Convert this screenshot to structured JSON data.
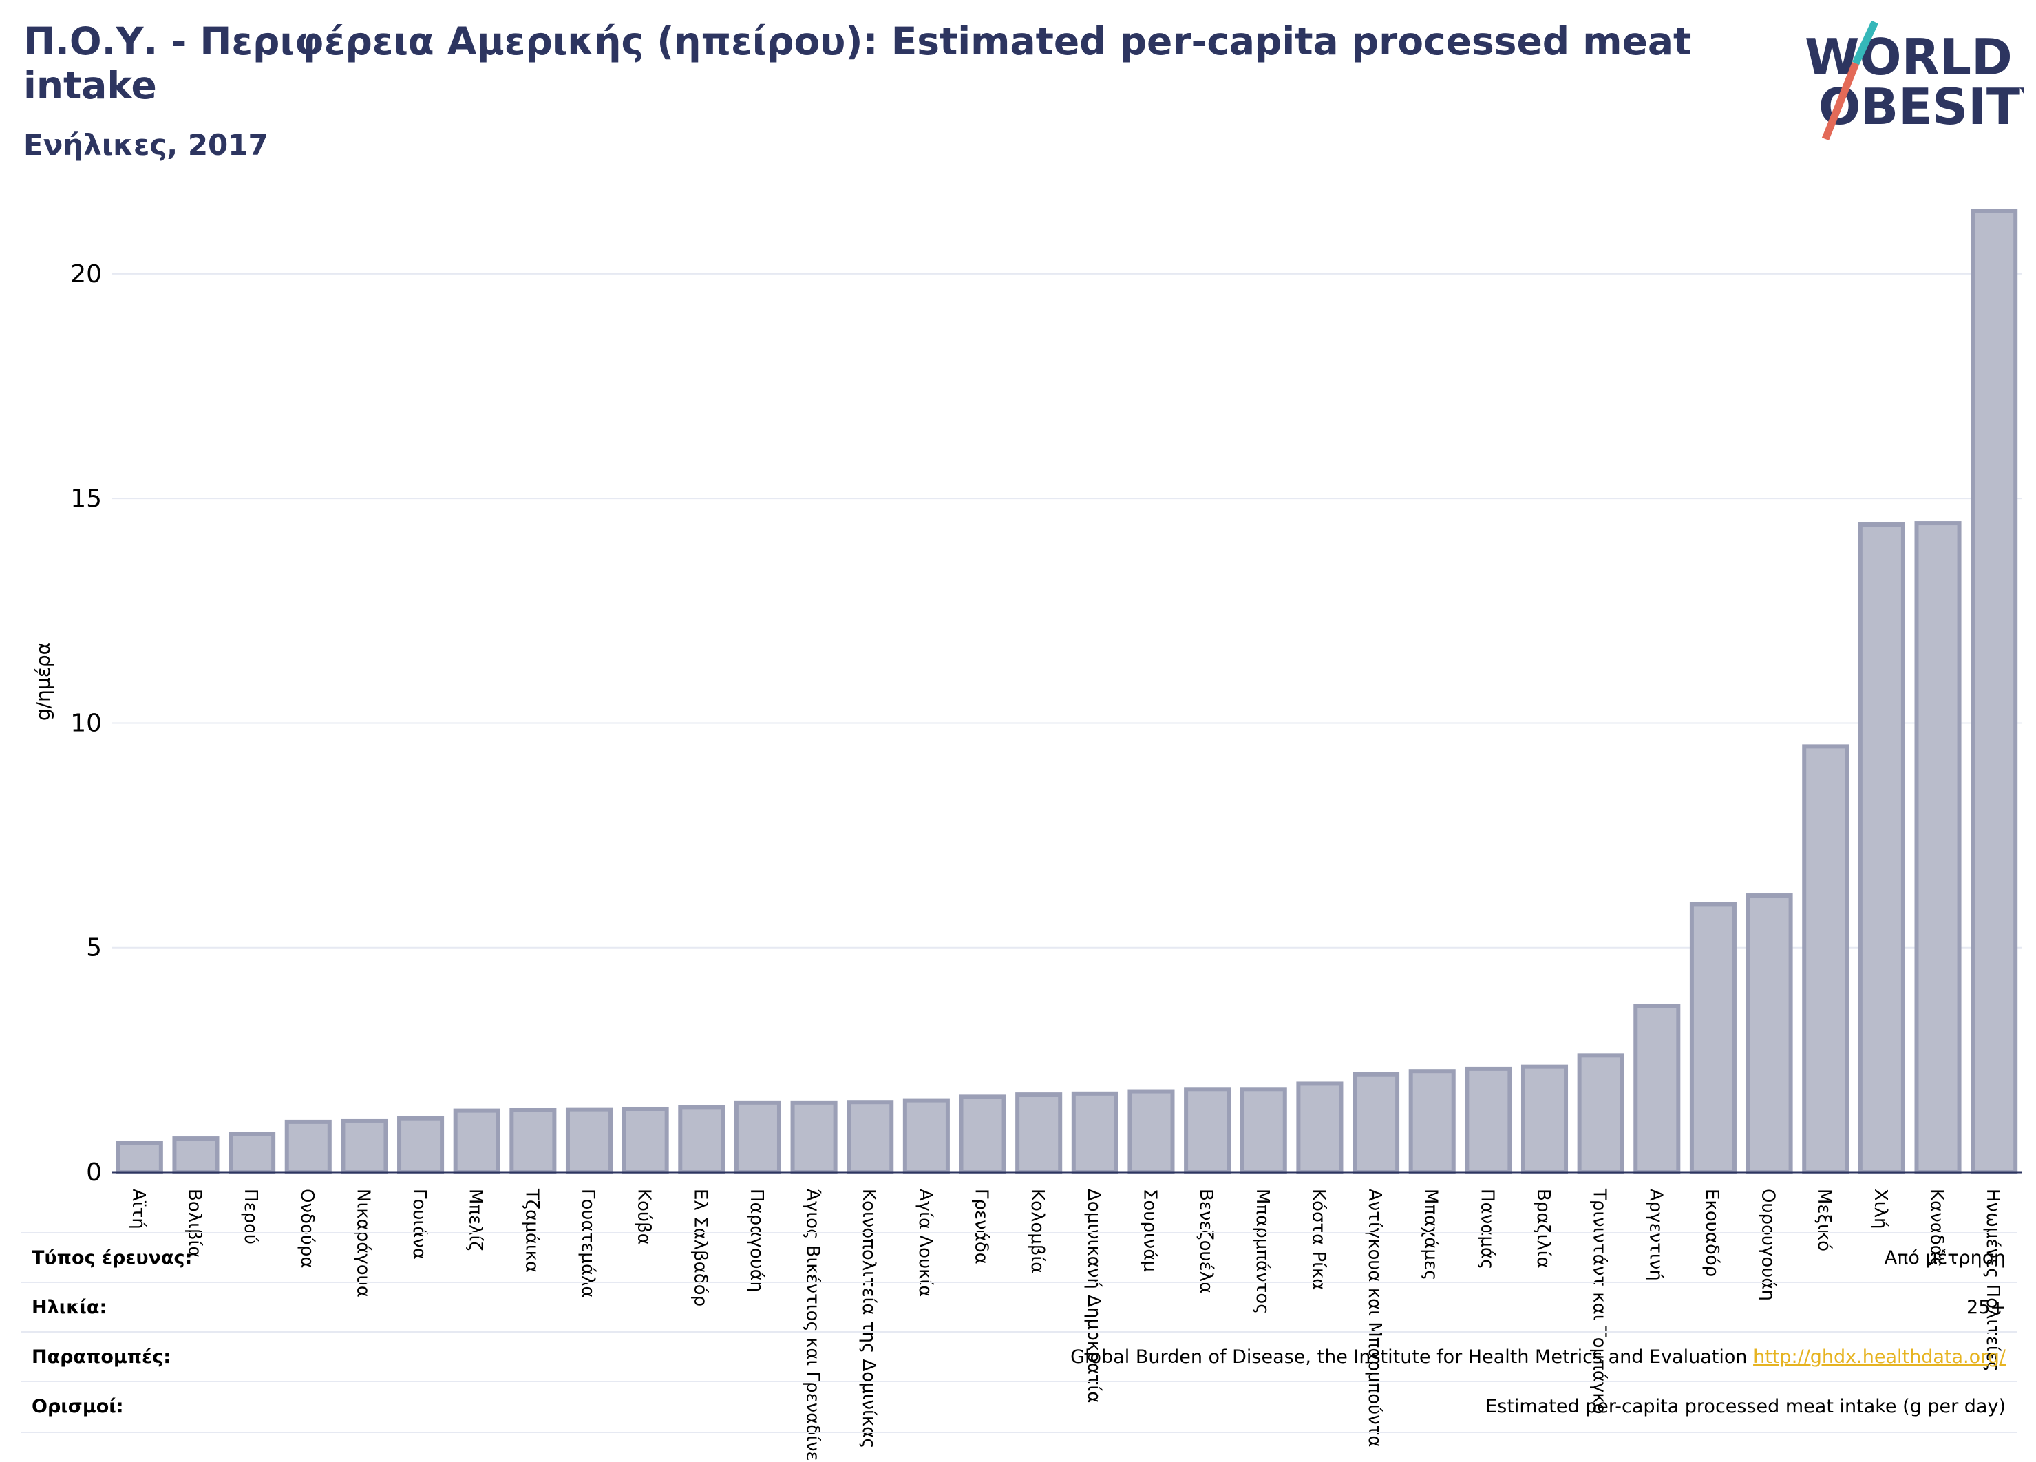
{
  "header": {
    "title": "Π.Ο.Υ. - Περιφέρεια Αμερικής (ηπείρου): Estimated per-capita processed meat intake",
    "subtitle": "Ενήλικες, 2017"
  },
  "logo": {
    "line1": "WORLD",
    "line2": "OBESITY",
    "accent_colors": [
      "#35b7b9",
      "#e36a58"
    ],
    "text_color": "#2d3560"
  },
  "chart_data": {
    "type": "bar",
    "ylabel": "g/ημέρα",
    "xlabel": "",
    "ylim": [
      0,
      21.5
    ],
    "yticks": [
      0,
      5,
      10,
      15,
      20
    ],
    "grid": true,
    "bar_fill": "#b9bccb",
    "bar_stroke": "#9b9fb6",
    "categories": [
      "Αϊτή",
      "Βολιβία",
      "Περού",
      "Ονδούρα",
      "Νικαράγουα",
      "Γουιάνα",
      "Μπελίζ",
      "Τζαμάικα",
      "Γουατεμάλα",
      "Κούβα",
      "Ελ Σαλβαδόρ",
      "Παραγουάη",
      "Άγιος Βικέντιος και Γρεναδίνες",
      "Κοινοπολιτεία της Δομινίκας",
      "Αγία Λουκία",
      "Γρενάδα",
      "Κολομβία",
      "Δομινικανή Δημοκρατία",
      "Σουρινάμ",
      "Βενεζουέλα",
      "Μπαρμπάντος",
      "Κόστα Ρίκα",
      "Αντίγκουα και Μπαρμπούντα",
      "Μπαχάμες",
      "Παναμάς",
      "Βραζιλία",
      "Τρινιντάντ και Τομπάγκο",
      "Αργεντινή",
      "Εκουαδόρ",
      "Ουρουγουάη",
      "Μεξικό",
      "Χιλή",
      "Καναδάς",
      "Ηνωμένες Πολιτείες"
    ],
    "values": [
      0.65,
      0.75,
      0.85,
      1.12,
      1.15,
      1.2,
      1.37,
      1.38,
      1.4,
      1.41,
      1.45,
      1.55,
      1.55,
      1.56,
      1.6,
      1.68,
      1.73,
      1.75,
      1.8,
      1.85,
      1.85,
      1.97,
      2.18,
      2.25,
      2.3,
      2.35,
      2.6,
      3.7,
      5.97,
      6.16,
      9.48,
      14.42,
      14.45,
      21.4
    ]
  },
  "footer": {
    "rows": [
      {
        "label": "Τύπος έρευνας:",
        "value": "Από μέτρηση"
      },
      {
        "label": "Ηλικία:",
        "value": "25+"
      },
      {
        "label": "Παραπομπές:",
        "value": "Global Burden of Disease, the Institute for Health Metrics and Evaluation",
        "link": "http://ghdx.healthdata.org/"
      },
      {
        "label": "Ορισμοί:",
        "value": "Estimated per-capita processed meat intake (g per day)"
      }
    ]
  }
}
